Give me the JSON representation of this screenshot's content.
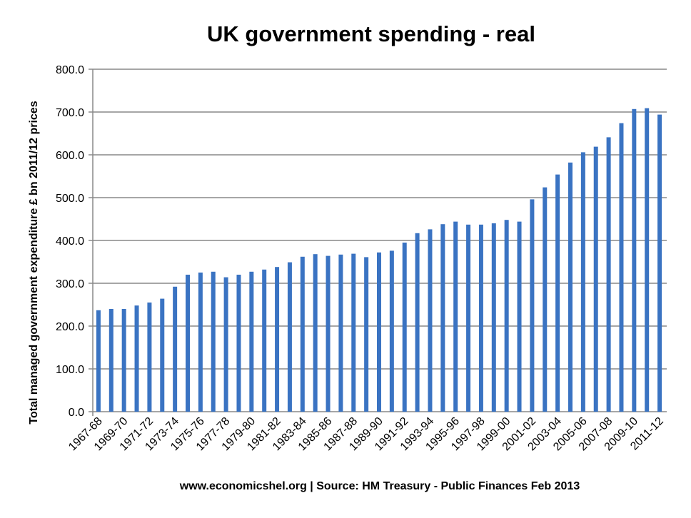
{
  "chart_data": {
    "type": "bar",
    "title": "UK government spending - real",
    "ylabel": "Total managed government expenditure £ bn 2011/12 prices",
    "xlabel": "www.economicshel.org | Source: HM Treasury - Public Finances Feb 2013",
    "ylim": [
      0,
      800
    ],
    "yticks": [
      "0.0",
      "100.0",
      "200.0",
      "300.0",
      "400.0",
      "500.0",
      "600.0",
      "700.0",
      "800.0"
    ],
    "grid": true,
    "color": "#3a73c2",
    "categories": [
      "1967-68",
      "1968-69",
      "1969-70",
      "1970-71",
      "1971-72",
      "1972-73",
      "1973-74",
      "1974-75",
      "1975-76",
      "1976-77",
      "1977-78",
      "1978-79",
      "1979-80",
      "1980-81",
      "1981-82",
      "1982-83",
      "1983-84",
      "1984-85",
      "1985-86",
      "1986-87",
      "1987-88",
      "1988-89",
      "1989-90",
      "1990-91",
      "1991-92",
      "1992-93",
      "1993-94",
      "1994-95",
      "1995-96",
      "1996-97",
      "1997-98",
      "1998-99",
      "1999-00",
      "2000-01",
      "2001-02",
      "2002-03",
      "2003-04",
      "2004-05",
      "2005-06",
      "2006-07",
      "2007-08",
      "2008-09",
      "2009-10",
      "2010-11",
      "2011-12"
    ],
    "xtick_labels_shown": [
      "1967-68",
      "1969-70",
      "1971-72",
      "1973-74",
      "1975-76",
      "1977-78",
      "1979-80",
      "1981-82",
      "1983-84",
      "1985-86",
      "1987-88",
      "1989-90",
      "1991-92",
      "1993-94",
      "1995-96",
      "1997-98",
      "1999-00",
      "2001-02",
      "2003-04",
      "2005-06",
      "2007-08",
      "2009-10",
      "2011-12"
    ],
    "values": [
      237,
      240,
      240,
      248,
      255,
      264,
      292,
      320,
      325,
      327,
      314,
      320,
      327,
      332,
      338,
      349,
      362,
      368,
      364,
      367,
      369,
      361,
      372,
      376,
      395,
      417,
      426,
      438,
      444,
      437,
      437,
      440,
      448,
      444,
      496,
      524,
      554,
      582,
      606,
      619,
      641,
      674,
      707,
      709,
      694
    ]
  }
}
